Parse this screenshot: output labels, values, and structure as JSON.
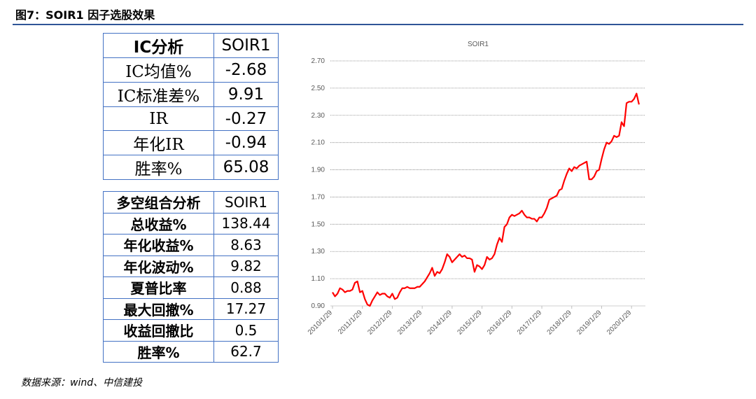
{
  "header": {
    "title": "图7：SOIR1 因子选股效果"
  },
  "ic_table": {
    "rows": [
      [
        "IC分析",
        "SOIR1"
      ],
      [
        "IC均值%",
        "-2.68"
      ],
      [
        "IC标准差%",
        "9.91"
      ],
      [
        "IR",
        "-0.27"
      ],
      [
        "年化IR",
        "-0.94"
      ],
      [
        "胜率%",
        "65.08"
      ]
    ]
  },
  "ls_table": {
    "rows": [
      [
        "多空组合分析",
        "SOIR1"
      ],
      [
        "总收益%",
        "138.44"
      ],
      [
        "年化收益%",
        "8.63"
      ],
      [
        "年化波动%",
        "9.82"
      ],
      [
        "夏普比率",
        "0.88"
      ],
      [
        "最大回撤%",
        "17.27"
      ],
      [
        "收益回撤比",
        "0.5"
      ],
      [
        "胜率%",
        "62.7"
      ]
    ]
  },
  "chart_data": {
    "type": "line",
    "title": "SOIR1",
    "color": "#ff0000",
    "grid": true,
    "categories": [
      "2010/1/29",
      null,
      null,
      null,
      null,
      null,
      null,
      null,
      null,
      null,
      null,
      null,
      "2011/1/29",
      null,
      null,
      null,
      null,
      null,
      null,
      null,
      null,
      null,
      null,
      null,
      "2012/1/29",
      null,
      null,
      null,
      null,
      null,
      null,
      null,
      null,
      null,
      null,
      null,
      "2013/1/29",
      null,
      null,
      null,
      null,
      null,
      null,
      null,
      null,
      null,
      null,
      null,
      "2014/1/29",
      null,
      null,
      null,
      null,
      null,
      null,
      null,
      null,
      null,
      null,
      null,
      "2015/1/29",
      null,
      null,
      null,
      null,
      null,
      null,
      null,
      null,
      null,
      null,
      null,
      "2016/1/29",
      null,
      null,
      null,
      null,
      null,
      null,
      null,
      null,
      null,
      null,
      null,
      "2017/1/29",
      null,
      null,
      null,
      null,
      null,
      null,
      null,
      null,
      null,
      null,
      null,
      "2018/1/29",
      null,
      null,
      null,
      null,
      null,
      null,
      null,
      null,
      null,
      null,
      null,
      "2019/1/29",
      null,
      null,
      null,
      null,
      null,
      null,
      null,
      null,
      null,
      null,
      null,
      "2020/1/29",
      null,
      null,
      null
    ],
    "values": [
      1.0,
      0.97,
      0.99,
      1.03,
      1.02,
      1.0,
      1.01,
      1.01,
      1.02,
      1.07,
      1.08,
      1.0,
      1.01,
      0.95,
      0.91,
      0.9,
      0.94,
      0.97,
      1.0,
      0.98,
      0.99,
      0.99,
      0.97,
      0.96,
      0.99,
      0.95,
      0.96,
      1.0,
      1.03,
      1.03,
      1.04,
      1.03,
      1.03,
      1.03,
      1.04,
      1.04,
      1.06,
      1.08,
      1.11,
      1.14,
      1.18,
      1.12,
      1.15,
      1.14,
      1.17,
      1.22,
      1.28,
      1.26,
      1.22,
      1.24,
      1.26,
      1.28,
      1.26,
      1.27,
      1.25,
      1.25,
      1.24,
      1.15,
      1.2,
      1.19,
      1.17,
      1.2,
      1.26,
      1.24,
      1.25,
      1.28,
      1.35,
      1.4,
      1.37,
      1.48,
      1.5,
      1.55,
      1.57,
      1.56,
      1.57,
      1.58,
      1.6,
      1.57,
      1.55,
      1.55,
      1.54,
      1.54,
      1.52,
      1.55,
      1.55,
      1.58,
      1.62,
      1.68,
      1.69,
      1.7,
      1.71,
      1.75,
      1.76,
      1.82,
      1.87,
      1.91,
      1.89,
      1.92,
      1.91,
      1.93,
      1.94,
      1.95,
      1.96,
      1.83,
      1.83,
      1.85,
      1.89,
      1.9,
      1.98,
      2.05,
      2.1,
      2.09,
      2.11,
      2.15,
      2.14,
      2.15,
      2.25,
      2.22,
      2.39,
      2.4,
      2.4,
      2.42,
      2.46,
      2.38
    ],
    "ylim": [
      0.9,
      2.7
    ],
    "yticks": [
      {
        "value": 0.9,
        "label": "0.90"
      },
      {
        "value": 1.1,
        "label": "1.10"
      },
      {
        "value": 1.3,
        "label": "1.30"
      },
      {
        "value": 1.5,
        "label": "1.50"
      },
      {
        "value": 1.7,
        "label": "1.70"
      },
      {
        "value": 1.9,
        "label": "1.90"
      },
      {
        "value": 2.1,
        "label": "2.10"
      },
      {
        "value": 2.3,
        "label": "2.30"
      },
      {
        "value": 2.5,
        "label": "2.50"
      },
      {
        "value": 2.7,
        "label": "2.70"
      }
    ]
  },
  "source": "数据来源：wind、中信建投"
}
